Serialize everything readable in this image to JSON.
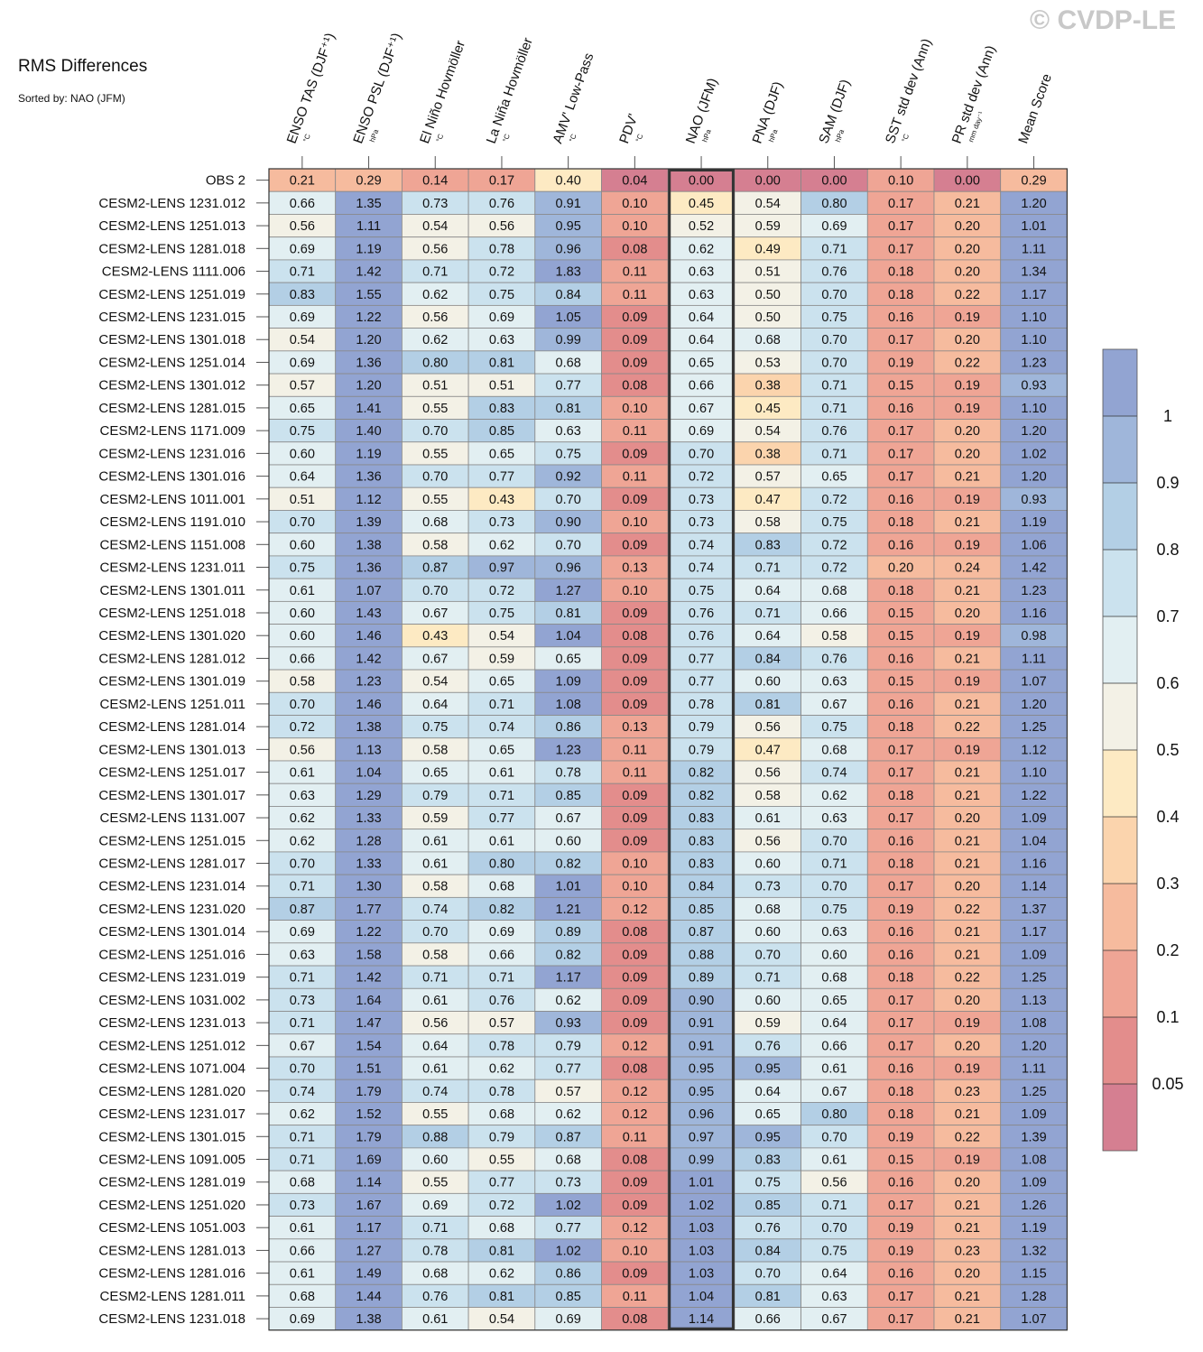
{
  "header": {
    "title": "RMS Differences",
    "subtitle": "Sorted by: NAO (JFM)",
    "watermark": "© CVDP-LE"
  },
  "chart_data": {
    "type": "heatmap",
    "title": "RMS Differences",
    "sort_label": "Sorted by: NAO (JFM)",
    "highlight_column": "NAO (JFM)",
    "columns": [
      {
        "name": "ENSO TAS (DJF⁺¹)",
        "unit": "°C"
      },
      {
        "name": "ENSO PSL (DJF⁺¹)",
        "unit": "hPa"
      },
      {
        "name": "El Niño Hovmöller",
        "unit": "°C"
      },
      {
        "name": "La Niña Hovmöller",
        "unit": "°C"
      },
      {
        "name": "AMV' Low-Pass",
        "unit": "°C"
      },
      {
        "name": "PDV'",
        "unit": "°C"
      },
      {
        "name": "NAO (JFM)",
        "unit": "hPa"
      },
      {
        "name": "PNA (DJF)",
        "unit": "hPa"
      },
      {
        "name": "SAM (DJF)",
        "unit": "hPa"
      },
      {
        "name": "SST std dev (Ann)",
        "unit": "°C"
      },
      {
        "name": "PR std dev (Ann)",
        "unit": "mm day⁻¹"
      },
      {
        "name": "Mean Score",
        "unit": ""
      }
    ],
    "rows": [
      {
        "label": "OBS 2",
        "values": [
          0.21,
          0.29,
          0.14,
          0.17,
          0.4,
          0.04,
          0.0,
          0.0,
          0.0,
          0.1,
          0.0,
          0.29
        ]
      },
      {
        "label": "CESM2-LENS 1231.012",
        "values": [
          0.66,
          1.35,
          0.73,
          0.76,
          0.91,
          0.1,
          0.45,
          0.54,
          0.8,
          0.17,
          0.21,
          1.2
        ]
      },
      {
        "label": "CESM2-LENS 1251.013",
        "values": [
          0.56,
          1.11,
          0.54,
          0.56,
          0.95,
          0.1,
          0.52,
          0.59,
          0.69,
          0.17,
          0.2,
          1.01
        ]
      },
      {
        "label": "CESM2-LENS 1281.018",
        "values": [
          0.69,
          1.19,
          0.56,
          0.78,
          0.96,
          0.08,
          0.62,
          0.49,
          0.71,
          0.17,
          0.2,
          1.11
        ]
      },
      {
        "label": "CESM2-LENS 1111.006",
        "values": [
          0.71,
          1.42,
          0.71,
          0.72,
          1.83,
          0.11,
          0.63,
          0.51,
          0.76,
          0.18,
          0.2,
          1.34
        ]
      },
      {
        "label": "CESM2-LENS 1251.019",
        "values": [
          0.83,
          1.55,
          0.62,
          0.75,
          0.84,
          0.11,
          0.63,
          0.5,
          0.7,
          0.18,
          0.22,
          1.17
        ]
      },
      {
        "label": "CESM2-LENS 1231.015",
        "values": [
          0.69,
          1.22,
          0.56,
          0.69,
          1.05,
          0.09,
          0.64,
          0.5,
          0.75,
          0.16,
          0.19,
          1.1
        ]
      },
      {
        "label": "CESM2-LENS 1301.018",
        "values": [
          0.54,
          1.2,
          0.62,
          0.63,
          0.99,
          0.09,
          0.64,
          0.68,
          0.7,
          0.17,
          0.2,
          1.1
        ]
      },
      {
        "label": "CESM2-LENS 1251.014",
        "values": [
          0.69,
          1.36,
          0.8,
          0.81,
          0.68,
          0.09,
          0.65,
          0.53,
          0.7,
          0.19,
          0.22,
          1.23
        ]
      },
      {
        "label": "CESM2-LENS 1301.012",
        "values": [
          0.57,
          1.2,
          0.51,
          0.51,
          0.77,
          0.08,
          0.66,
          0.38,
          0.71,
          0.15,
          0.19,
          0.93
        ]
      },
      {
        "label": "CESM2-LENS 1281.015",
        "values": [
          0.65,
          1.41,
          0.55,
          0.83,
          0.81,
          0.1,
          0.67,
          0.45,
          0.71,
          0.16,
          0.19,
          1.1
        ]
      },
      {
        "label": "CESM2-LENS 1171.009",
        "values": [
          0.75,
          1.4,
          0.7,
          0.85,
          0.63,
          0.11,
          0.69,
          0.54,
          0.76,
          0.17,
          0.2,
          1.2
        ]
      },
      {
        "label": "CESM2-LENS 1231.016",
        "values": [
          0.6,
          1.19,
          0.55,
          0.65,
          0.75,
          0.09,
          0.7,
          0.38,
          0.71,
          0.17,
          0.2,
          1.02
        ]
      },
      {
        "label": "CESM2-LENS 1301.016",
        "values": [
          0.64,
          1.36,
          0.7,
          0.77,
          0.92,
          0.11,
          0.72,
          0.57,
          0.65,
          0.17,
          0.21,
          1.2
        ]
      },
      {
        "label": "CESM2-LENS 1011.001",
        "values": [
          0.51,
          1.12,
          0.55,
          0.43,
          0.7,
          0.09,
          0.73,
          0.47,
          0.72,
          0.16,
          0.19,
          0.93
        ]
      },
      {
        "label": "CESM2-LENS 1191.010",
        "values": [
          0.7,
          1.39,
          0.68,
          0.73,
          0.9,
          0.1,
          0.73,
          0.58,
          0.75,
          0.18,
          0.21,
          1.19
        ]
      },
      {
        "label": "CESM2-LENS 1151.008",
        "values": [
          0.6,
          1.38,
          0.58,
          0.62,
          0.7,
          0.09,
          0.74,
          0.83,
          0.72,
          0.16,
          0.19,
          1.06
        ]
      },
      {
        "label": "CESM2-LENS 1231.011",
        "values": [
          0.75,
          1.36,
          0.87,
          0.97,
          0.96,
          0.13,
          0.74,
          0.71,
          0.72,
          0.2,
          0.24,
          1.42
        ]
      },
      {
        "label": "CESM2-LENS 1301.011",
        "values": [
          0.61,
          1.07,
          0.7,
          0.72,
          1.27,
          0.1,
          0.75,
          0.64,
          0.68,
          0.18,
          0.21,
          1.23
        ]
      },
      {
        "label": "CESM2-LENS 1251.018",
        "values": [
          0.6,
          1.43,
          0.67,
          0.75,
          0.81,
          0.09,
          0.76,
          0.71,
          0.66,
          0.15,
          0.2,
          1.16
        ]
      },
      {
        "label": "CESM2-LENS 1301.020",
        "values": [
          0.6,
          1.46,
          0.43,
          0.54,
          1.04,
          0.08,
          0.76,
          0.64,
          0.58,
          0.15,
          0.19,
          0.98
        ]
      },
      {
        "label": "CESM2-LENS 1281.012",
        "values": [
          0.66,
          1.42,
          0.67,
          0.59,
          0.65,
          0.09,
          0.77,
          0.84,
          0.76,
          0.16,
          0.21,
          1.11
        ]
      },
      {
        "label": "CESM2-LENS 1301.019",
        "values": [
          0.58,
          1.23,
          0.54,
          0.65,
          1.09,
          0.09,
          0.77,
          0.6,
          0.63,
          0.15,
          0.19,
          1.07
        ]
      },
      {
        "label": "CESM2-LENS 1251.011",
        "values": [
          0.7,
          1.46,
          0.64,
          0.71,
          1.08,
          0.09,
          0.78,
          0.81,
          0.67,
          0.16,
          0.21,
          1.2
        ]
      },
      {
        "label": "CESM2-LENS 1281.014",
        "values": [
          0.72,
          1.38,
          0.75,
          0.74,
          0.86,
          0.13,
          0.79,
          0.56,
          0.75,
          0.18,
          0.22,
          1.25
        ]
      },
      {
        "label": "CESM2-LENS 1301.013",
        "values": [
          0.56,
          1.13,
          0.58,
          0.65,
          1.23,
          0.11,
          0.79,
          0.47,
          0.68,
          0.17,
          0.19,
          1.12
        ]
      },
      {
        "label": "CESM2-LENS 1251.017",
        "values": [
          0.61,
          1.04,
          0.65,
          0.61,
          0.78,
          0.11,
          0.82,
          0.56,
          0.74,
          0.17,
          0.21,
          1.1
        ]
      },
      {
        "label": "CESM2-LENS 1301.017",
        "values": [
          0.63,
          1.29,
          0.79,
          0.71,
          0.85,
          0.09,
          0.82,
          0.58,
          0.62,
          0.18,
          0.21,
          1.22
        ]
      },
      {
        "label": "CESM2-LENS 1131.007",
        "values": [
          0.62,
          1.33,
          0.59,
          0.77,
          0.67,
          0.09,
          0.83,
          0.61,
          0.63,
          0.17,
          0.2,
          1.09
        ]
      },
      {
        "label": "CESM2-LENS 1251.015",
        "values": [
          0.62,
          1.28,
          0.61,
          0.61,
          0.6,
          0.09,
          0.83,
          0.56,
          0.7,
          0.16,
          0.21,
          1.04
        ]
      },
      {
        "label": "CESM2-LENS 1281.017",
        "values": [
          0.7,
          1.33,
          0.61,
          0.8,
          0.82,
          0.1,
          0.83,
          0.6,
          0.71,
          0.18,
          0.21,
          1.16
        ]
      },
      {
        "label": "CESM2-LENS 1231.014",
        "values": [
          0.71,
          1.3,
          0.58,
          0.68,
          1.01,
          0.1,
          0.84,
          0.73,
          0.7,
          0.17,
          0.2,
          1.14
        ]
      },
      {
        "label": "CESM2-LENS 1231.020",
        "values": [
          0.87,
          1.77,
          0.74,
          0.82,
          1.21,
          0.12,
          0.85,
          0.68,
          0.75,
          0.19,
          0.22,
          1.37
        ]
      },
      {
        "label": "CESM2-LENS 1301.014",
        "values": [
          0.69,
          1.22,
          0.7,
          0.69,
          0.89,
          0.08,
          0.87,
          0.6,
          0.63,
          0.16,
          0.21,
          1.17
        ]
      },
      {
        "label": "CESM2-LENS 1251.016",
        "values": [
          0.63,
          1.58,
          0.58,
          0.66,
          0.82,
          0.09,
          0.88,
          0.7,
          0.6,
          0.16,
          0.21,
          1.09
        ]
      },
      {
        "label": "CESM2-LENS 1231.019",
        "values": [
          0.71,
          1.42,
          0.71,
          0.71,
          1.17,
          0.09,
          0.89,
          0.71,
          0.68,
          0.18,
          0.22,
          1.25
        ]
      },
      {
        "label": "CESM2-LENS 1031.002",
        "values": [
          0.73,
          1.64,
          0.61,
          0.76,
          0.62,
          0.09,
          0.9,
          0.6,
          0.65,
          0.17,
          0.2,
          1.13
        ]
      },
      {
        "label": "CESM2-LENS 1231.013",
        "values": [
          0.71,
          1.47,
          0.56,
          0.57,
          0.93,
          0.09,
          0.91,
          0.59,
          0.64,
          0.17,
          0.19,
          1.08
        ]
      },
      {
        "label": "CESM2-LENS 1251.012",
        "values": [
          0.67,
          1.54,
          0.64,
          0.78,
          0.79,
          0.12,
          0.91,
          0.76,
          0.66,
          0.17,
          0.2,
          1.2
        ]
      },
      {
        "label": "CESM2-LENS 1071.004",
        "values": [
          0.7,
          1.51,
          0.61,
          0.62,
          0.77,
          0.08,
          0.95,
          0.95,
          0.61,
          0.16,
          0.19,
          1.11
        ]
      },
      {
        "label": "CESM2-LENS 1281.020",
        "values": [
          0.74,
          1.79,
          0.74,
          0.78,
          0.57,
          0.12,
          0.95,
          0.64,
          0.67,
          0.18,
          0.23,
          1.25
        ]
      },
      {
        "label": "CESM2-LENS 1231.017",
        "values": [
          0.62,
          1.52,
          0.55,
          0.68,
          0.62,
          0.12,
          0.96,
          0.65,
          0.8,
          0.18,
          0.21,
          1.09
        ]
      },
      {
        "label": "CESM2-LENS 1301.015",
        "values": [
          0.71,
          1.79,
          0.88,
          0.79,
          0.87,
          0.11,
          0.97,
          0.95,
          0.7,
          0.19,
          0.22,
          1.39
        ]
      },
      {
        "label": "CESM2-LENS 1091.005",
        "values": [
          0.71,
          1.69,
          0.6,
          0.55,
          0.68,
          0.08,
          0.99,
          0.83,
          0.61,
          0.15,
          0.19,
          1.08
        ]
      },
      {
        "label": "CESM2-LENS 1281.019",
        "values": [
          0.68,
          1.14,
          0.55,
          0.77,
          0.73,
          0.09,
          1.01,
          0.75,
          0.56,
          0.16,
          0.2,
          1.09
        ]
      },
      {
        "label": "CESM2-LENS 1251.020",
        "values": [
          0.73,
          1.67,
          0.69,
          0.72,
          1.02,
          0.09,
          1.02,
          0.85,
          0.71,
          0.17,
          0.21,
          1.26
        ]
      },
      {
        "label": "CESM2-LENS 1051.003",
        "values": [
          0.61,
          1.17,
          0.71,
          0.68,
          0.77,
          0.12,
          1.03,
          0.76,
          0.7,
          0.19,
          0.21,
          1.19
        ]
      },
      {
        "label": "CESM2-LENS 1281.013",
        "values": [
          0.66,
          1.27,
          0.78,
          0.81,
          1.02,
          0.1,
          1.03,
          0.84,
          0.75,
          0.19,
          0.23,
          1.32
        ]
      },
      {
        "label": "CESM2-LENS 1281.016",
        "values": [
          0.61,
          1.49,
          0.68,
          0.62,
          0.86,
          0.09,
          1.03,
          0.7,
          0.64,
          0.16,
          0.2,
          1.15
        ]
      },
      {
        "label": "CESM2-LENS 1281.011",
        "values": [
          0.68,
          1.44,
          0.76,
          0.81,
          0.85,
          0.11,
          1.04,
          0.81,
          0.63,
          0.17,
          0.21,
          1.28
        ]
      },
      {
        "label": "CESM2-LENS 1231.018",
        "values": [
          0.69,
          1.38,
          0.61,
          0.54,
          0.69,
          0.08,
          1.14,
          0.66,
          0.67,
          0.17,
          0.21,
          1.07
        ]
      }
    ],
    "colorbar": {
      "levels": [
        0.05,
        0.1,
        0.2,
        0.3,
        0.4,
        0.5,
        0.6,
        0.7,
        0.8,
        0.9,
        1
      ],
      "labels": [
        "1",
        "0.9",
        "0.8",
        "0.7",
        "0.6",
        "0.5",
        "0.4",
        "0.3",
        "0.2",
        "0.1",
        "0.05"
      ],
      "colors": [
        "#d57f91",
        "#e38d8c",
        "#efa595",
        "#f6bb9e",
        "#fbd4ad",
        "#fdeac3",
        "#f3f1e6",
        "#e2eff2",
        "#cbe2ee",
        "#b3cfe5",
        "#9fb6da",
        "#92a4d2"
      ]
    }
  }
}
